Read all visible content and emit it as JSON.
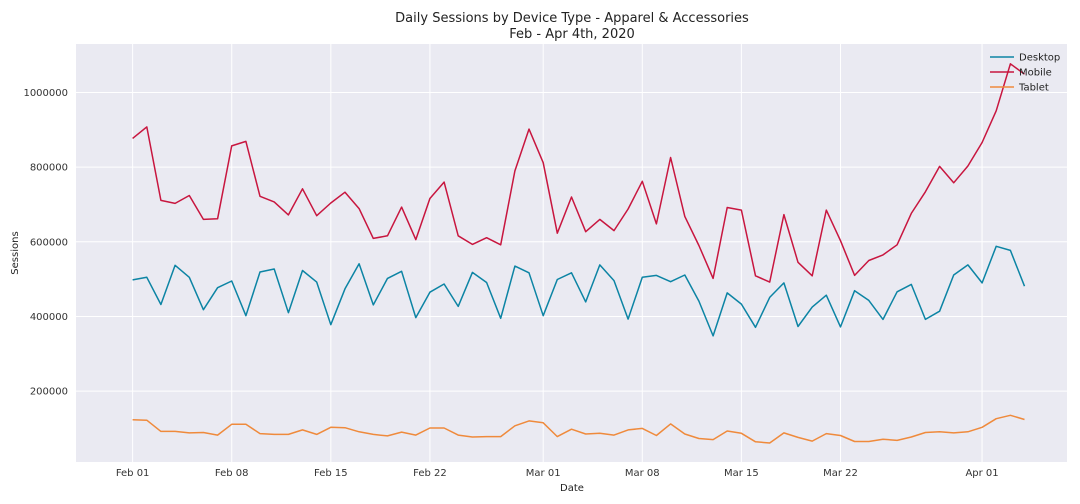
{
  "chart_data": {
    "type": "line",
    "title": "Daily Sessions by Device Type - Apparel & Accessories",
    "subtitle": "Feb - Apr 4th, 2020",
    "xlabel": "Date",
    "ylabel": "Sessions",
    "x_start": "2020-02-01",
    "x_end": "2020-04-04",
    "xlim": [
      "2020-01-28",
      "2020-04-07"
    ],
    "ylim": [
      10000,
      1130000
    ],
    "x_ticks": [
      {
        "date": "2020-02-01",
        "label": "Feb 01"
      },
      {
        "date": "2020-02-08",
        "label": "Feb 08"
      },
      {
        "date": "2020-02-15",
        "label": "Feb 15"
      },
      {
        "date": "2020-02-22",
        "label": "Feb 22"
      },
      {
        "date": "2020-03-01",
        "label": "Mar 01"
      },
      {
        "date": "2020-03-08",
        "label": "Mar 08"
      },
      {
        "date": "2020-03-15",
        "label": "Mar 15"
      },
      {
        "date": "2020-03-22",
        "label": "Mar 22"
      },
      {
        "date": "2020-04-01",
        "label": "Apr 01"
      }
    ],
    "y_ticks": [
      {
        "value": 200000,
        "label": "200000"
      },
      {
        "value": 400000,
        "label": "400000"
      },
      {
        "value": 600000,
        "label": "600000"
      },
      {
        "value": 800000,
        "label": "800000"
      },
      {
        "value": 1000000,
        "label": "1000000"
      }
    ],
    "grid": true,
    "legend_position": "top-right",
    "series": [
      {
        "name": "Desktop",
        "color": "#0c84a4",
        "values": [
          498000,
          505000,
          432000,
          537000,
          505000,
          418000,
          477000,
          495000,
          402000,
          519000,
          527000,
          410000,
          523000,
          492000,
          378000,
          474000,
          541000,
          431000,
          502000,
          521000,
          397000,
          465000,
          487000,
          427000,
          518000,
          491000,
          395000,
          535000,
          517000,
          402000,
          499000,
          517000,
          439000,
          538000,
          496000,
          393000,
          505000,
          510000,
          493000,
          511000,
          441000,
          348000,
          463000,
          433000,
          371000,
          451000,
          490000,
          373000,
          425000,
          457000,
          372000,
          469000,
          443000,
          392000,
          466000,
          486000,
          392000,
          414000,
          511000,
          538000,
          490000,
          588000,
          577000,
          481000
        ]
      },
      {
        "name": "Mobile",
        "color": "#c8163f",
        "values": [
          877000,
          908000,
          711000,
          703000,
          724000,
          660000,
          662000,
          857000,
          869000,
          722000,
          707000,
          672000,
          742000,
          670000,
          704000,
          733000,
          689000,
          609000,
          616000,
          693000,
          606000,
          716000,
          760000,
          616000,
          593000,
          611000,
          592000,
          790000,
          902000,
          812000,
          623000,
          720000,
          627000,
          660000,
          630000,
          688000,
          762000,
          648000,
          826000,
          668000,
          590000,
          502000,
          692000,
          685000,
          509000,
          492000,
          673000,
          545000,
          509000,
          685000,
          603000,
          510000,
          550000,
          565000,
          592000,
          676000,
          734000,
          802000,
          758000,
          803000,
          866000,
          951000,
          1077000,
          1049000
        ]
      },
      {
        "name": "Tablet",
        "color": "#ef8a3c",
        "values": [
          123000,
          122000,
          92000,
          92000,
          88000,
          89000,
          82000,
          111000,
          111000,
          86000,
          84000,
          84000,
          96000,
          84000,
          103000,
          102000,
          91000,
          84000,
          80000,
          90000,
          82000,
          101000,
          101000,
          82000,
          77000,
          78000,
          78000,
          107000,
          120000,
          115000,
          78000,
          98000,
          85000,
          87000,
          82000,
          96000,
          100000,
          81000,
          112000,
          85000,
          73000,
          70000,
          93000,
          87000,
          64000,
          61000,
          88000,
          76000,
          66000,
          86000,
          81000,
          65000,
          65000,
          71000,
          68000,
          77000,
          89000,
          91000,
          88000,
          91000,
          103000,
          126000,
          135000,
          124000
        ]
      }
    ]
  }
}
